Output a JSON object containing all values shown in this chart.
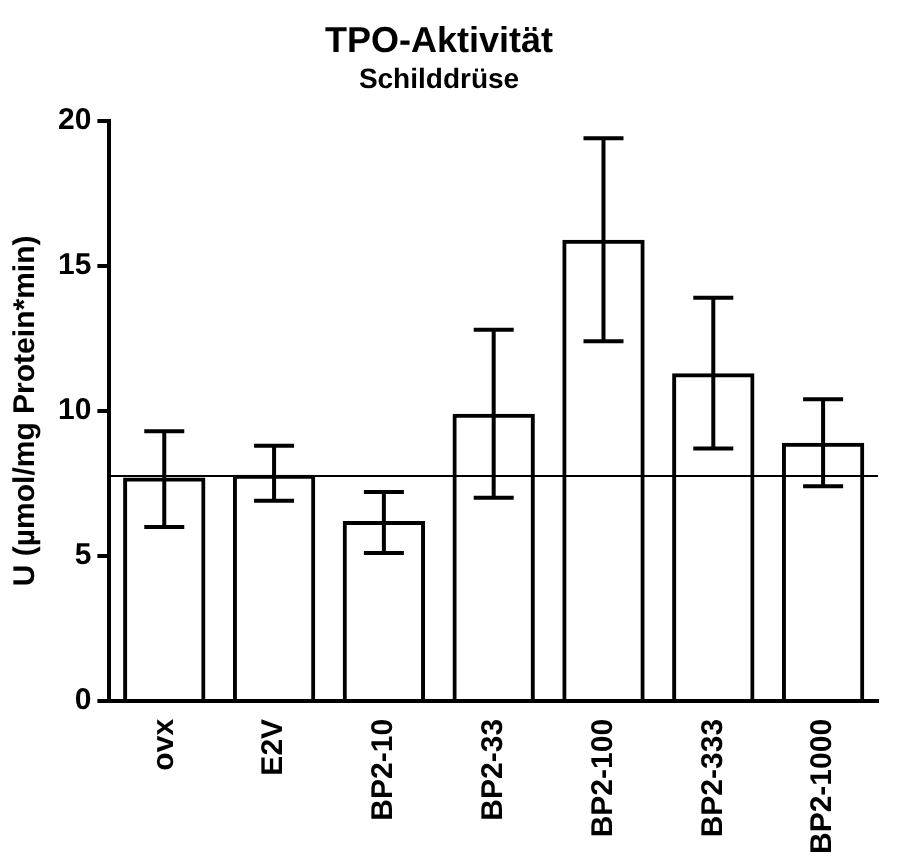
{
  "chart_data": {
    "type": "bar",
    "title": "TPO-Aktivität",
    "subtitle": "Schilddrüse",
    "ylabel": "U (µmol/mg Protein*min)",
    "categories": [
      "ovx",
      "E2V",
      "BP2-10",
      "BP2-33",
      "BP2-100",
      "BP2-333",
      "BP2-1000"
    ],
    "values": [
      7.7,
      7.8,
      6.2,
      9.9,
      15.9,
      11.3,
      8.9
    ],
    "errors": [
      [
        6.0,
        9.3
      ],
      [
        6.9,
        8.8
      ],
      [
        5.1,
        7.2
      ],
      [
        7.0,
        12.8
      ],
      [
        12.4,
        19.4
      ],
      [
        8.7,
        13.9
      ],
      [
        7.4,
        10.4
      ]
    ],
    "color": "#000000",
    "ylim": [
      0,
      20
    ],
    "yticks": [
      0,
      5,
      10,
      15,
      20
    ],
    "grid": false,
    "legend": false,
    "ref_lines": [
      {
        "axis": "y",
        "value": 7.75,
        "color": "#000000"
      }
    ]
  }
}
